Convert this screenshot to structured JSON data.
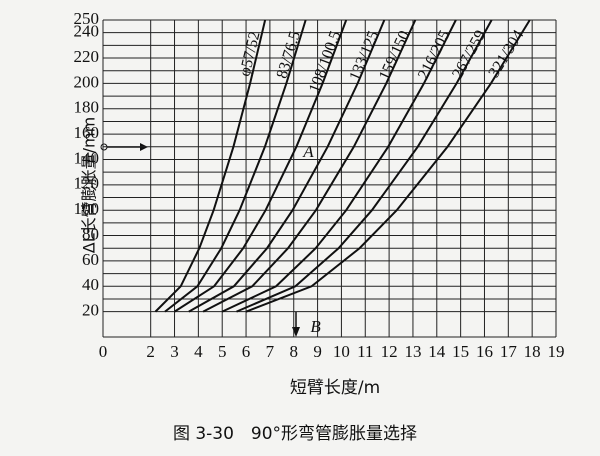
{
  "chart_data": {
    "type": "line",
    "xlabel": "短臂长度/m",
    "ylabel": "ΔL长臂膨胀量/mm",
    "caption": "图 3-30　90°形弯管膨胀量选择",
    "xlim": [
      0,
      19
    ],
    "xticks": [
      0,
      2,
      3,
      4,
      5,
      6,
      7,
      8,
      9,
      10,
      11,
      12,
      13,
      14,
      15,
      16,
      17,
      18,
      19
    ],
    "ylim": [
      0,
      250
    ],
    "yticks": [
      20,
      40,
      60,
      80,
      100,
      120,
      140,
      160,
      180,
      200,
      220,
      240,
      250
    ],
    "yminorticks": [
      30,
      50,
      70,
      90,
      110,
      130,
      150,
      170,
      190,
      210,
      230
    ],
    "grid": true,
    "annotations": [
      {
        "text": "A",
        "x": 8.4,
        "y": 145
      },
      {
        "text": "B",
        "x": 8.7,
        "y": 7
      }
    ],
    "series": [
      {
        "name": "φ57/52",
        "color": "#111111",
        "x": [
          2.2,
          3.26,
          4.04,
          4.64,
          5.47,
          6.17,
          6.8
        ],
        "values": [
          20,
          40,
          70,
          100,
          150,
          200,
          250
        ]
      },
      {
        "name": "83/76.5",
        "color": "#111111",
        "x": [
          2.6,
          3.96,
          4.96,
          5.73,
          6.79,
          7.69,
          8.5
        ],
        "values": [
          20,
          40,
          70,
          100,
          150,
          200,
          250
        ]
      },
      {
        "name": "108/100.5",
        "color": "#111111",
        "x": [
          3.0,
          4.66,
          5.88,
          6.82,
          8.11,
          9.21,
          10.2
        ],
        "values": [
          20,
          40,
          70,
          100,
          150,
          200,
          250
        ]
      },
      {
        "name": "133/125",
        "color": "#111111",
        "x": [
          3.6,
          5.49,
          6.88,
          7.95,
          9.42,
          10.68,
          11.8
        ],
        "values": [
          20,
          40,
          70,
          100,
          150,
          200,
          250
        ]
      },
      {
        "name": "159/150",
        "color": "#111111",
        "x": [
          4.2,
          6.26,
          7.76,
          8.93,
          10.52,
          11.88,
          13.1
        ],
        "values": [
          20,
          40,
          70,
          100,
          150,
          200,
          250
        ]
      },
      {
        "name": "216/205",
        "color": "#111111",
        "x": [
          5.0,
          7.26,
          8.92,
          10.2,
          11.96,
          13.46,
          14.8
        ],
        "values": [
          20,
          40,
          70,
          100,
          150,
          200,
          250
        ]
      },
      {
        "name": "267/259",
        "color": "#111111",
        "x": [
          5.6,
          8.07,
          9.88,
          11.28,
          13.2,
          14.83,
          16.3
        ],
        "values": [
          20,
          40,
          70,
          100,
          150,
          200,
          250
        ]
      },
      {
        "name": "321/304",
        "color": "#111111",
        "x": [
          6.0,
          8.75,
          10.76,
          12.32,
          14.45,
          16.27,
          17.9
        ],
        "values": [
          20,
          40,
          70,
          100,
          150,
          200,
          250
        ]
      }
    ]
  }
}
